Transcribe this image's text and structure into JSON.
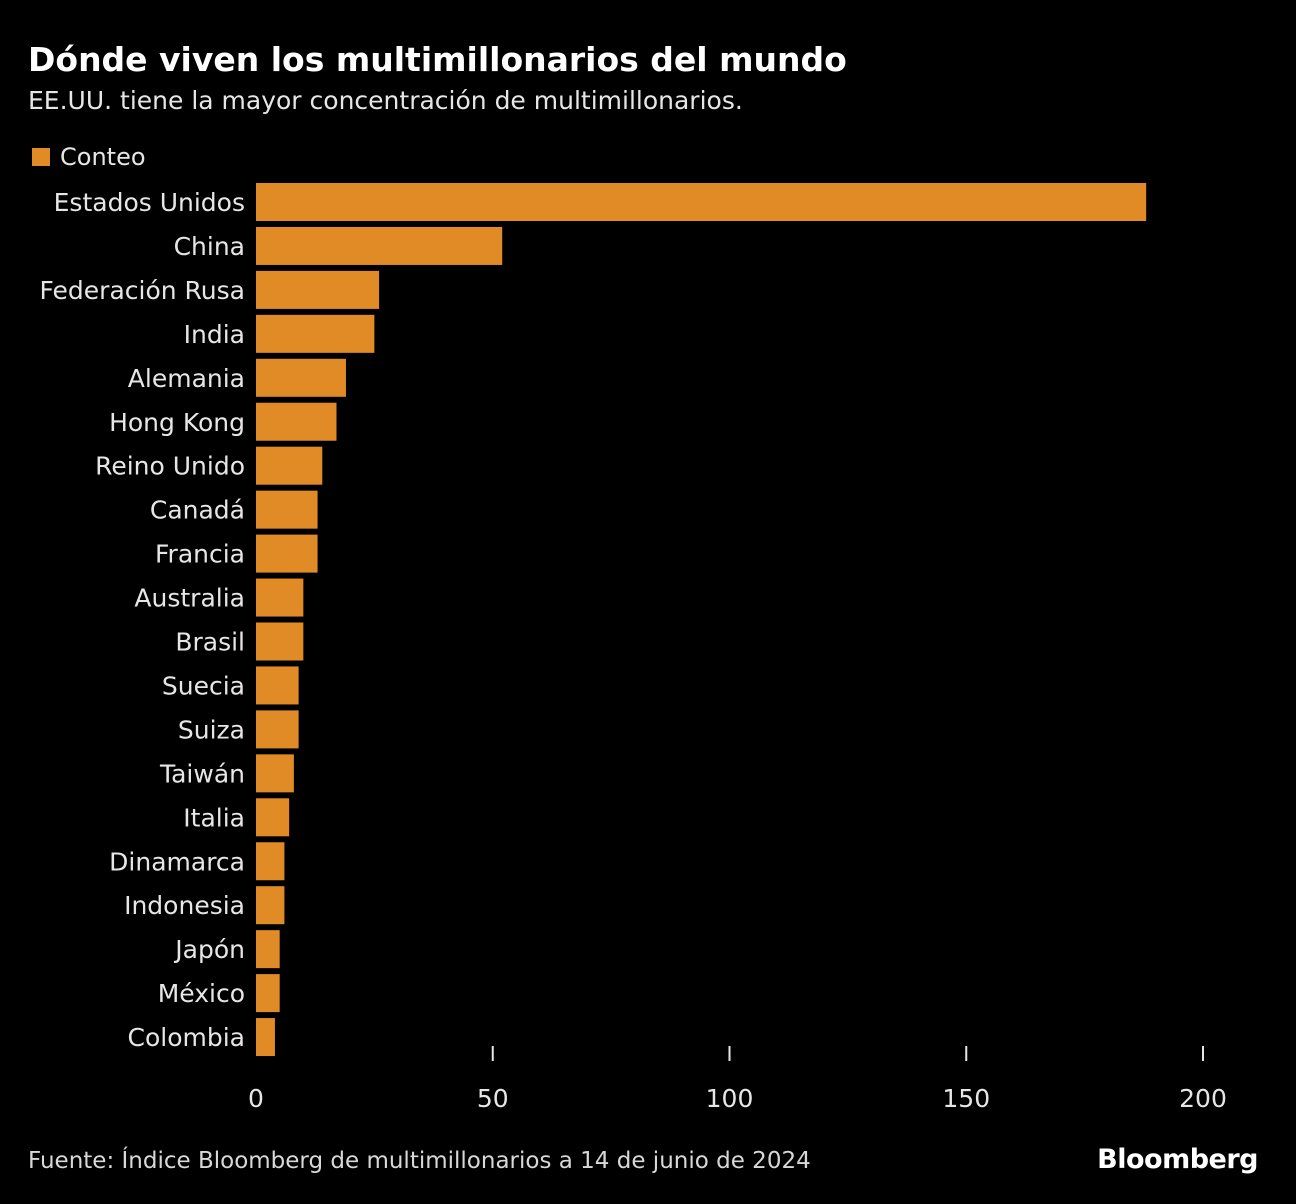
{
  "title": "Dónde viven los multimillonarios del mundo",
  "subtitle": "EE.UU. tiene la mayor concentración de multimillonarios.",
  "source": "Fuente: Índice Bloomberg de multimillonarios a 14 de junio de 2024",
  "logo": "Bloomberg",
  "colors": {
    "bar": "#e08b25",
    "background": "#000000"
  },
  "chart_data": {
    "type": "bar",
    "orientation": "horizontal",
    "legend": "top-left",
    "categories": [
      "Estados Unidos",
      "China",
      "Federación Rusa",
      "India",
      "Alemania",
      "Hong Kong",
      "Reino Unido",
      "Canadá",
      "Francia",
      "Australia",
      "Brasil",
      "Suecia",
      "Suiza",
      "Taiwán",
      "Italia",
      "Dinamarca",
      "Indonesia",
      "Japón",
      "México",
      "Colombia"
    ],
    "series": [
      {
        "name": "Conteo",
        "values": [
          188,
          52,
          26,
          25,
          19,
          17,
          14,
          13,
          13,
          10,
          10,
          9,
          9,
          8,
          7,
          6,
          6,
          5,
          5,
          4
        ]
      }
    ],
    "xlim": [
      0,
      200
    ],
    "xticks": [
      "0",
      "50",
      "100",
      "150",
      "200"
    ],
    "grid": false
  }
}
